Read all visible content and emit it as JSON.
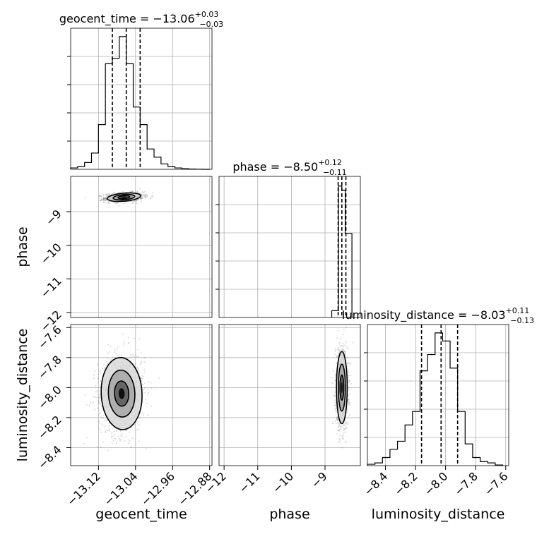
{
  "chart_data": {
    "type": "corner",
    "parameters": [
      "geocent_time",
      "phase",
      "luminosity_distance"
    ],
    "titles": {
      "geocent_time": {
        "name": "geocent_time",
        "value": "−13.06",
        "plus": "+0.03",
        "minus": "−0.03"
      },
      "phase": {
        "name": "phase",
        "value": "−8.50",
        "plus": "+0.12",
        "minus": "−0.11"
      },
      "luminosity_distance": {
        "name": "luminosity_distance",
        "value": "−8.03",
        "plus": "+0.11",
        "minus": "−0.13"
      }
    },
    "axis_labels": {
      "x": [
        "geocent_time",
        "phase",
        "luminosity_distance"
      ],
      "y": [
        "phase",
        "luminosity_distance"
      ]
    },
    "ticks": {
      "geocent_time": [
        {
          "v": -13.12,
          "label": "−13.12"
        },
        {
          "v": -13.04,
          "label": "−13.04"
        },
        {
          "v": -12.96,
          "label": "−12.96"
        },
        {
          "v": -12.88,
          "label": "−12.88"
        }
      ],
      "phase": [
        {
          "v": -12,
          "label": "−12"
        },
        {
          "v": -11,
          "label": "−11"
        },
        {
          "v": -10,
          "label": "−10"
        },
        {
          "v": -9,
          "label": "−9"
        }
      ],
      "luminosity_distance": [
        {
          "v": -8.4,
          "label": "−8.4"
        },
        {
          "v": -8.2,
          "label": "−8.2"
        },
        {
          "v": -8.0,
          "label": "−8.0"
        },
        {
          "v": -7.8,
          "label": "−7.8"
        },
        {
          "v": -7.6,
          "label": "−7.6"
        }
      ]
    },
    "ranges": {
      "geocent_time": [
        -13.18,
        -12.875
      ],
      "phase": [
        -12.15,
        -7.95
      ],
      "luminosity_distance": [
        -8.52,
        -7.58
      ]
    },
    "histograms": {
      "geocent_time": {
        "bin_edges": [
          -13.18,
          -13.165,
          -13.15,
          -13.135,
          -13.12,
          -13.105,
          -13.09,
          -13.075,
          -13.06,
          -13.045,
          -13.03,
          -13.015,
          -13.0,
          -12.985,
          -12.97,
          -12.955,
          -12.94,
          -12.925,
          -12.91,
          -12.895,
          -12.88
        ],
        "heights": [
          0.01,
          0.02,
          0.05,
          0.12,
          0.33,
          0.78,
          0.82,
          0.98,
          0.78,
          0.46,
          0.33,
          0.15,
          0.09,
          0.04,
          0.02,
          0.01,
          0.005,
          0.002,
          0.001,
          0.0
        ],
        "quantiles": [
          -13.09,
          -13.06,
          -13.03
        ]
      },
      "phase": {
        "bin_edges": [
          -8.8,
          -8.6,
          -8.5,
          -8.4,
          -8.2
        ],
        "heights": [
          0.05,
          0.97,
          0.94,
          0.62
        ],
        "quantiles": [
          -8.61,
          -8.5,
          -8.38
        ]
      },
      "luminosity_distance": {
        "bin_edges": [
          -8.52,
          -8.47,
          -8.42,
          -8.37,
          -8.32,
          -8.27,
          -8.22,
          -8.17,
          -8.12,
          -8.07,
          -8.02,
          -7.97,
          -7.92,
          -7.87,
          -7.82,
          -7.77,
          -7.72,
          -7.67,
          -7.62
        ],
        "heights": [
          0.01,
          0.02,
          0.06,
          0.12,
          0.18,
          0.3,
          0.4,
          0.7,
          0.82,
          0.98,
          0.92,
          0.72,
          0.4,
          0.16,
          0.06,
          0.03,
          0.02,
          0.005
        ],
        "quantiles": [
          -8.16,
          -8.03,
          -7.92
        ]
      }
    },
    "pairs": [
      {
        "x": "geocent_time",
        "y": "phase",
        "center": [
          -13.065,
          -8.57
        ],
        "sigma": [
          0.018,
          0.06
        ],
        "rho": 0.2
      },
      {
        "x": "geocent_time",
        "y": "luminosity_distance",
        "center": [
          -13.07,
          -8.04
        ],
        "sigma": [
          0.022,
          0.12
        ],
        "rho": 0.1
      },
      {
        "x": "phase",
        "y": "luminosity_distance",
        "center": [
          -8.5,
          -8.0
        ],
        "sigma": [
          0.08,
          0.12
        ],
        "rho": 0.0
      }
    ],
    "grid": true
  }
}
